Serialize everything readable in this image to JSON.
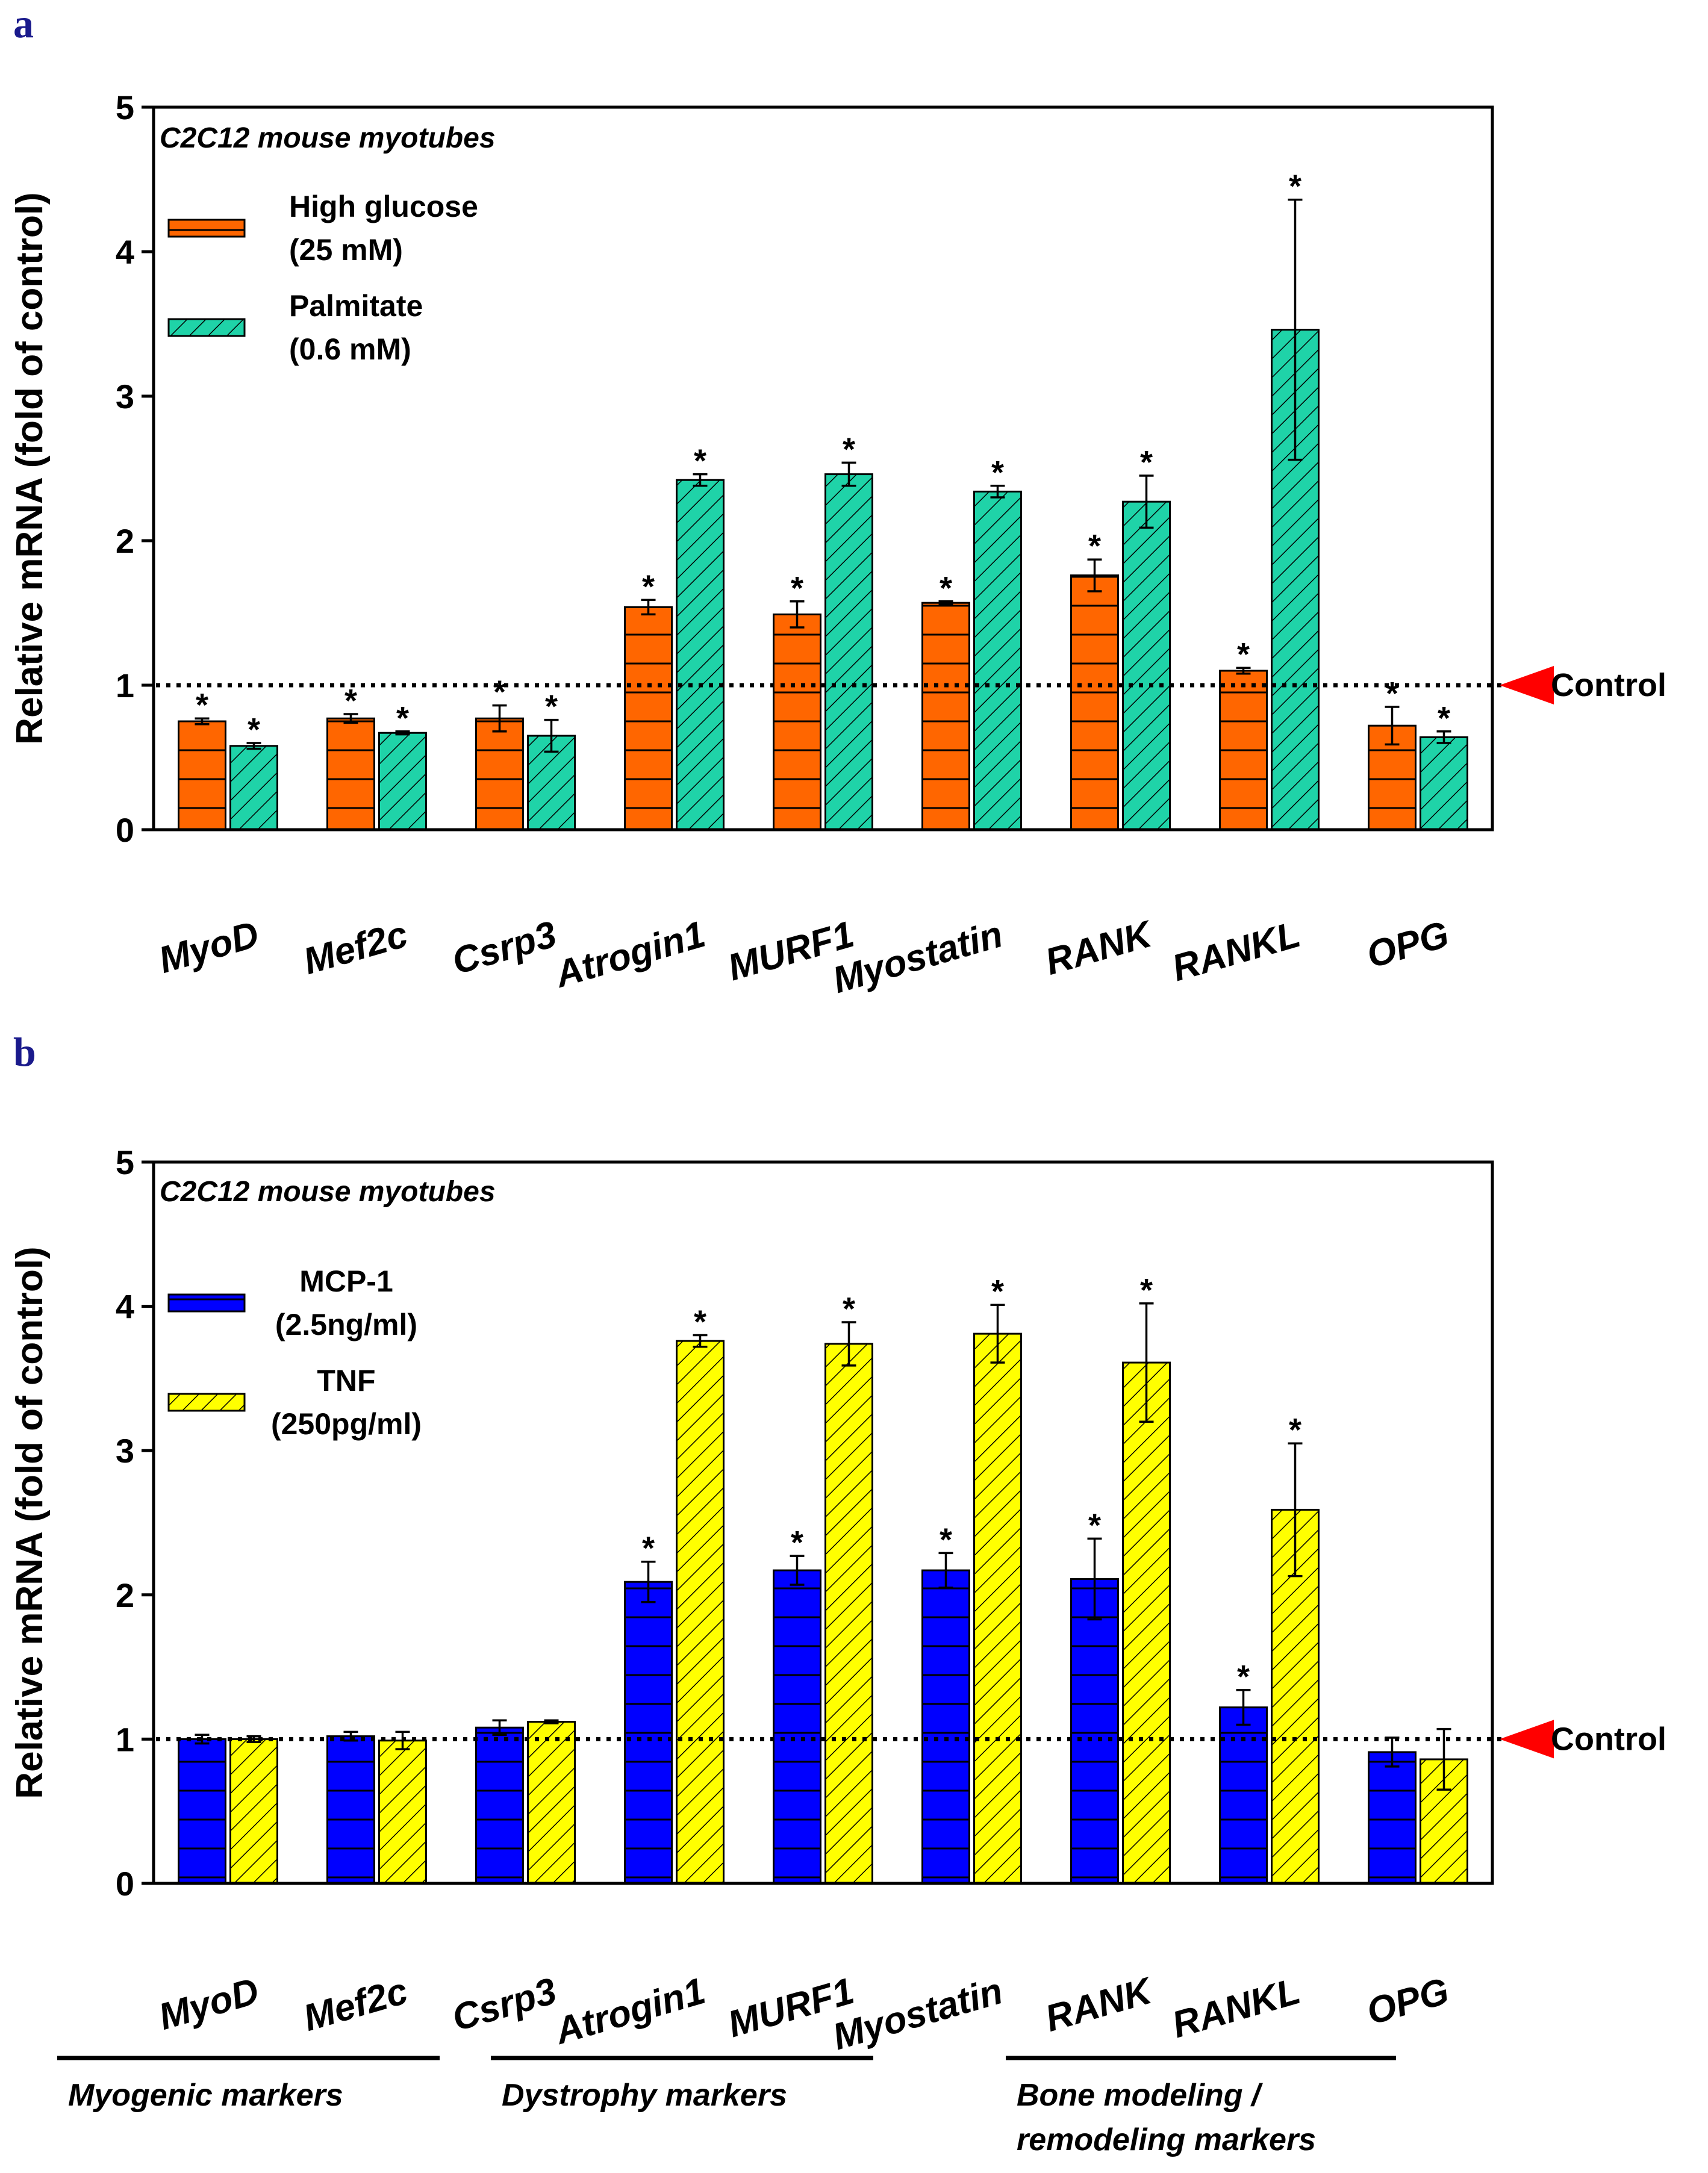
{
  "chart_data": [
    {
      "panel": "a",
      "type": "bar",
      "inset_title": "C2C12 mouse myotubes",
      "ylabel": "Relative mRNA (fold of control)",
      "xlabel": "",
      "ylim": [
        0,
        5
      ],
      "yticks": [
        0,
        1,
        2,
        3,
        4,
        5
      ],
      "grid": false,
      "legend_position": "top-left",
      "categories": [
        "MyoD",
        "Mef2c",
        "Csrp3",
        "Atrogin1",
        "MURF1",
        "Myostatin",
        "RANK",
        "RANKL",
        "OPG"
      ],
      "series": [
        {
          "name_lines": [
            "High glucose",
            "(25 mM)"
          ],
          "color": "#ff6600",
          "pattern": "horizontal",
          "values": [
            0.75,
            0.77,
            0.77,
            1.54,
            1.49,
            1.57,
            1.76,
            1.1,
            0.72
          ],
          "errors": [
            0.02,
            0.03,
            0.09,
            0.05,
            0.09,
            0.01,
            0.11,
            0.02,
            0.13
          ],
          "significant": [
            true,
            true,
            true,
            true,
            true,
            true,
            true,
            true,
            true
          ]
        },
        {
          "name_lines": [
            "Palmitate",
            " (0.6 mM)"
          ],
          "color": "#1fd3a8",
          "pattern": "diagonal",
          "values": [
            0.58,
            0.67,
            0.65,
            2.42,
            2.46,
            2.34,
            2.27,
            3.46,
            0.64
          ],
          "errors": [
            0.02,
            0.01,
            0.11,
            0.04,
            0.08,
            0.04,
            0.18,
            0.9,
            0.04
          ],
          "significant": [
            true,
            true,
            true,
            true,
            true,
            true,
            true,
            true,
            true
          ]
        }
      ],
      "reference": {
        "value": 1,
        "label": "Control",
        "arrow_color": "#ff0000"
      },
      "significance_mark": "*"
    },
    {
      "panel": "b",
      "type": "bar",
      "inset_title": "C2C12 mouse myotubes",
      "ylabel": "Relative mRNA (fold of control)",
      "xlabel": "",
      "ylim": [
        0,
        5
      ],
      "yticks": [
        0,
        1,
        2,
        3,
        4,
        5
      ],
      "grid": false,
      "legend_position": "top-left",
      "categories": [
        "MyoD",
        "Mef2c",
        "Csrp3",
        "Atrogin1",
        "MURF1",
        "Myostatin",
        "RANK",
        "RANKL",
        "OPG"
      ],
      "series": [
        {
          "name_lines": [
            "MCP-1",
            "(2.5ng/ml)"
          ],
          "color": "#0000ff",
          "pattern": "horizontal",
          "values": [
            1.0,
            1.02,
            1.08,
            2.09,
            2.17,
            2.17,
            2.11,
            1.22,
            0.91
          ],
          "errors": [
            0.03,
            0.03,
            0.05,
            0.14,
            0.1,
            0.12,
            0.28,
            0.12,
            0.1
          ],
          "significant": [
            false,
            false,
            false,
            true,
            true,
            true,
            true,
            true,
            false
          ]
        },
        {
          "name_lines": [
            "TNF",
            "(250pg/ml)"
          ],
          "color": "#ffff00",
          "pattern": "diagonal",
          "values": [
            1.0,
            0.99,
            1.12,
            3.76,
            3.74,
            3.81,
            3.61,
            2.59,
            0.86
          ],
          "errors": [
            0.02,
            0.06,
            0.01,
            0.04,
            0.15,
            0.2,
            0.41,
            0.46,
            0.21
          ],
          "significant": [
            false,
            false,
            false,
            true,
            true,
            true,
            true,
            true,
            false
          ]
        }
      ],
      "reference": {
        "value": 1,
        "label": "Control",
        "arrow_color": "#ff0000"
      },
      "significance_mark": "*",
      "category_groups": [
        {
          "label_lines": [
            "Myogenic markers"
          ],
          "span": [
            0,
            2
          ]
        },
        {
          "label_lines": [
            "Dystrophy markers"
          ],
          "span": [
            3,
            5
          ]
        },
        {
          "label_lines": [
            "Bone modeling /",
            "remodeling markers"
          ],
          "span": [
            6,
            8
          ]
        }
      ]
    }
  ]
}
